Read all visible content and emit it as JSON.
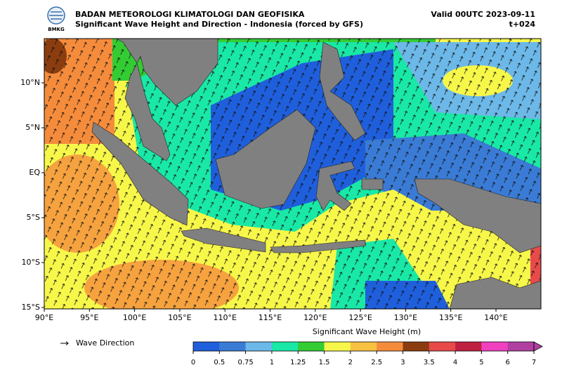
{
  "header": {
    "logo": "BMKG",
    "agency": "BADAN METEOROLOGI KLIMATOLOGI DAN GEOFISIKA",
    "title": "Significant Wave Height and Direction - Indonesia (forced by GFS)",
    "valid": "Valid 00UTC 2023-09-11",
    "lead": "t+024"
  },
  "map": {
    "lat_labels": [
      "10°N",
      "5°N",
      "EQ",
      "5°S",
      "10°S",
      "15°S"
    ],
    "lon_labels": [
      "90°E",
      "95°E",
      "100°E",
      "105°E",
      "110°E",
      "115°E",
      "120°E",
      "125°E",
      "130°E",
      "135°E",
      "140°E"
    ]
  },
  "legend": {
    "label": "Wave Direction"
  },
  "colorbar": {
    "title": "Significant Wave Height (m)",
    "levels": [
      0,
      0.5,
      0.75,
      1,
      1.25,
      1.5,
      2,
      2.5,
      3,
      3.5,
      4,
      5,
      6,
      7
    ],
    "colors": [
      "#1f5fdc",
      "#3a7bd5",
      "#6cb8e8",
      "#19e8a6",
      "#33cc33",
      "#f7f74a",
      "#f7c242",
      "#f58c3c",
      "#8b3d10",
      "#e84a4a",
      "#c02040",
      "#f040c0",
      "#b040a0"
    ]
  }
}
